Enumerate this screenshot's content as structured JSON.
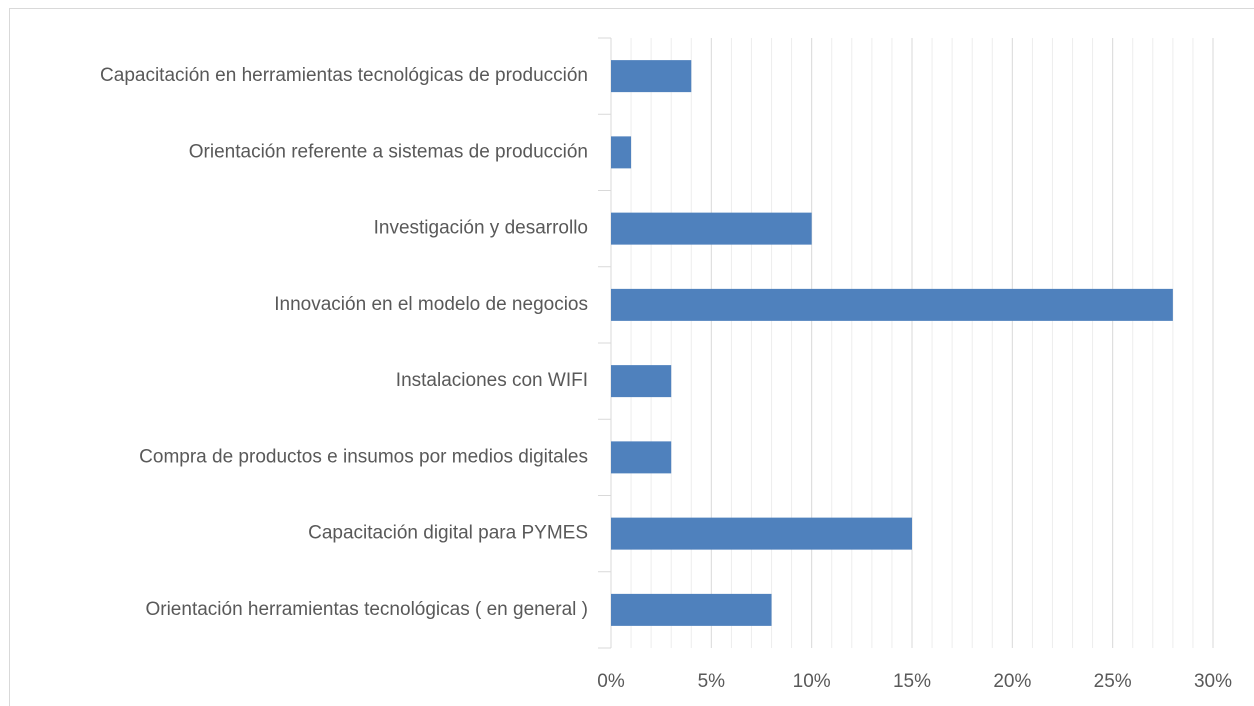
{
  "chart_data": {
    "type": "barh",
    "categories": [
      "Capacitación en herramientas tecnológicas de producción",
      "Orientación referente a sistemas de producción",
      "Investigación y desarrollo",
      "Innovación en el modelo de negocios",
      "Instalaciones con WIFI",
      "Compra de productos e insumos por medios digitales",
      "Capacitación digital para PYMES",
      "Orientación herramientas tecnológicas ( en general )"
    ],
    "values": [
      4,
      1,
      10,
      28,
      3,
      3,
      15,
      8
    ],
    "color": "#4f81bd",
    "xlim": [
      0,
      30
    ],
    "xticks": [
      {
        "value": 0,
        "label": "0%"
      },
      {
        "value": 5,
        "label": "5%"
      },
      {
        "value": 10,
        "label": "10%"
      },
      {
        "value": 15,
        "label": "15%"
      },
      {
        "value": 20,
        "label": "20%"
      },
      {
        "value": 25,
        "label": "25%"
      },
      {
        "value": 30,
        "label": "30%"
      }
    ],
    "grid": true,
    "minor_grid": true
  }
}
